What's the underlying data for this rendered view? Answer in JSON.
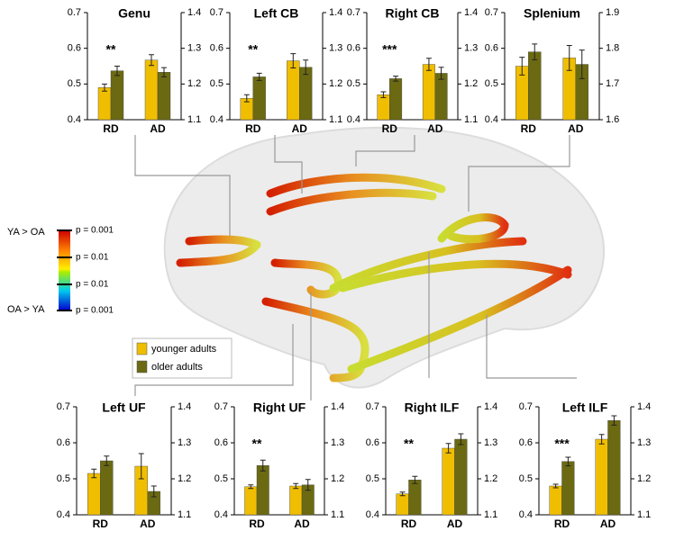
{
  "chart_data": [
    {
      "type": "bar",
      "title": "Genu",
      "categories": [
        "RD",
        "AD"
      ],
      "annotation": "**",
      "ylim": [
        0.4,
        0.7
      ],
      "yticks": [
        0.4,
        0.5,
        0.6,
        0.7
      ],
      "y2lim": [
        1.1,
        1.4
      ],
      "y2ticks": [
        1.1,
        1.2,
        1.3,
        1.4
      ],
      "groups": [
        {
          "axis": "y",
          "values": [
            0.49,
            0.537
          ],
          "errors": [
            0.01,
            0.013
          ]
        },
        {
          "axis": "y2",
          "values": [
            1.267,
            1.233
          ],
          "errors": [
            0.015,
            0.013
          ]
        }
      ]
    },
    {
      "type": "bar",
      "title": "Left CB",
      "categories": [
        "RD",
        "AD"
      ],
      "annotation": "**",
      "ylim": [
        0.4,
        0.7
      ],
      "yticks": [
        0.4,
        0.5,
        0.6,
        0.7
      ],
      "y2lim": [
        1.1,
        1.4
      ],
      "y2ticks": [
        1.1,
        1.2,
        1.3,
        1.4
      ],
      "groups": [
        {
          "axis": "y",
          "values": [
            0.46,
            0.52
          ],
          "errors": [
            0.01,
            0.01
          ]
        },
        {
          "axis": "y2",
          "values": [
            1.265,
            1.247
          ],
          "errors": [
            0.02,
            0.02
          ]
        }
      ]
    },
    {
      "type": "bar",
      "title": "Right CB",
      "categories": [
        "RD",
        "AD"
      ],
      "annotation": "***",
      "ylim": [
        0.4,
        0.7
      ],
      "yticks": [
        0.4,
        0.5,
        0.6,
        0.7
      ],
      "y2lim": [
        1.1,
        1.4
      ],
      "y2ticks": [
        1.1,
        1.2,
        1.3,
        1.4
      ],
      "groups": [
        {
          "axis": "y",
          "values": [
            0.47,
            0.515
          ],
          "errors": [
            0.008,
            0.007
          ]
        },
        {
          "axis": "y2",
          "values": [
            1.255,
            1.23
          ],
          "errors": [
            0.017,
            0.017
          ]
        }
      ]
    },
    {
      "type": "bar",
      "title": "Splenium",
      "categories": [
        "RD",
        "AD"
      ],
      "ylim": [
        0.4,
        0.7
      ],
      "yticks": [
        0.4,
        0.5,
        0.6,
        0.7
      ],
      "y2lim": [
        1.6,
        1.9
      ],
      "y2ticks": [
        1.6,
        1.7,
        1.8,
        1.9
      ],
      "groups": [
        {
          "axis": "y",
          "values": [
            0.55,
            0.59
          ],
          "errors": [
            0.025,
            0.022
          ]
        },
        {
          "axis": "y2",
          "values": [
            1.773,
            1.755
          ],
          "errors": [
            0.035,
            0.04
          ]
        }
      ]
    },
    {
      "type": "bar",
      "title": "Left UF",
      "categories": [
        "RD",
        "AD"
      ],
      "ylim": [
        0.4,
        0.7
      ],
      "yticks": [
        0.4,
        0.5,
        0.6,
        0.7
      ],
      "y2lim": [
        1.1,
        1.4
      ],
      "y2ticks": [
        1.1,
        1.2,
        1.3,
        1.4
      ],
      "groups": [
        {
          "axis": "y",
          "values": [
            0.515,
            0.55
          ],
          "errors": [
            0.012,
            0.013
          ]
        },
        {
          "axis": "y2",
          "values": [
            1.235,
            1.165
          ],
          "errors": [
            0.035,
            0.015
          ]
        }
      ]
    },
    {
      "type": "bar",
      "title": "Right UF",
      "categories": [
        "RD",
        "AD"
      ],
      "annotation": "**",
      "ylim": [
        0.4,
        0.7
      ],
      "yticks": [
        0.4,
        0.5,
        0.6,
        0.7
      ],
      "y2lim": [
        1.1,
        1.4
      ],
      "y2ticks": [
        1.1,
        1.2,
        1.3,
        1.4
      ],
      "groups": [
        {
          "axis": "y",
          "values": [
            0.478,
            0.537
          ],
          "errors": [
            0.005,
            0.015
          ]
        },
        {
          "axis": "y2",
          "values": [
            1.18,
            1.183
          ],
          "errors": [
            0.007,
            0.015
          ]
        }
      ]
    },
    {
      "type": "bar",
      "title": "Right ILF",
      "categories": [
        "RD",
        "AD"
      ],
      "annotation": "**",
      "ylim": [
        0.4,
        0.7
      ],
      "yticks": [
        0.4,
        0.5,
        0.6,
        0.7
      ],
      "y2lim": [
        1.1,
        1.4
      ],
      "y2ticks": [
        1.1,
        1.2,
        1.3,
        1.4
      ],
      "groups": [
        {
          "axis": "y",
          "values": [
            0.458,
            0.497
          ],
          "errors": [
            0.005,
            0.01
          ]
        },
        {
          "axis": "y2",
          "values": [
            1.285,
            1.31
          ],
          "errors": [
            0.013,
            0.015
          ]
        }
      ]
    },
    {
      "type": "bar",
      "title": "Left ILF",
      "categories": [
        "RD",
        "AD"
      ],
      "annotation": "***",
      "ylim": [
        0.4,
        0.7
      ],
      "yticks": [
        0.4,
        0.5,
        0.6,
        0.7
      ],
      "y2lim": [
        1.1,
        1.4
      ],
      "y2ticks": [
        1.1,
        1.2,
        1.3,
        1.4
      ],
      "groups": [
        {
          "axis": "y",
          "values": [
            0.48,
            0.548
          ],
          "errors": [
            0.005,
            0.012
          ]
        },
        {
          "axis": "y2",
          "values": [
            1.31,
            1.362
          ],
          "errors": [
            0.013,
            0.013
          ]
        }
      ]
    }
  ],
  "legend": {
    "items": [
      {
        "label": "younger adults",
        "color": "#f0be00"
      },
      {
        "label": "older adults",
        "color": "#6b6a12"
      }
    ]
  },
  "colorbar": {
    "top_label": "YA > OA",
    "bottom_label": "OA > YA",
    "ticks": [
      "p = 0.001",
      "p = 0.01",
      "p = 0.01",
      "p = 0.001"
    ]
  }
}
